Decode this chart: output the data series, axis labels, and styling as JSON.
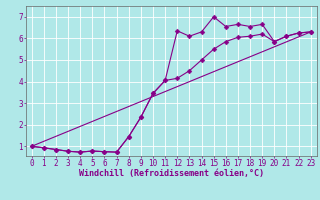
{
  "xlabel": "Windchill (Refroidissement éolien,°C)",
  "bg_color": "#b0e8e8",
  "line_color": "#880088",
  "grid_color": "#cccccc",
  "spine_color": "#666666",
  "xlim": [
    -0.5,
    23.5
  ],
  "ylim": [
    0.55,
    7.5
  ],
  "xticks": [
    0,
    1,
    2,
    3,
    4,
    5,
    6,
    7,
    8,
    9,
    10,
    11,
    12,
    13,
    14,
    15,
    16,
    17,
    18,
    19,
    20,
    21,
    22,
    23
  ],
  "yticks": [
    1,
    2,
    3,
    4,
    5,
    6,
    7
  ],
  "line1_x": [
    0,
    1,
    2,
    3,
    4,
    5,
    6,
    7,
    8,
    9,
    10,
    11,
    12,
    13,
    14,
    15,
    16,
    17,
    18,
    19,
    20,
    21,
    22,
    23
  ],
  "line1_y": [
    1.0,
    0.93,
    0.85,
    0.77,
    0.73,
    0.78,
    0.75,
    0.73,
    1.45,
    2.35,
    3.45,
    4.05,
    6.35,
    6.1,
    6.3,
    7.0,
    6.55,
    6.65,
    6.55,
    6.65,
    5.85,
    6.1,
    6.25,
    6.3
  ],
  "line2_x": [
    0,
    1,
    2,
    3,
    4,
    5,
    6,
    7,
    8,
    9,
    10,
    11,
    12,
    13,
    14,
    15,
    16,
    17,
    18,
    19,
    20,
    21,
    22,
    23
  ],
  "line2_y": [
    1.0,
    0.93,
    0.85,
    0.77,
    0.73,
    0.78,
    0.75,
    0.73,
    1.45,
    2.35,
    3.45,
    4.05,
    4.15,
    4.5,
    5.0,
    5.5,
    5.85,
    6.05,
    6.1,
    6.2,
    5.85,
    6.1,
    6.25,
    6.3
  ],
  "line3_x": [
    0,
    23
  ],
  "line3_y": [
    1.0,
    6.3
  ],
  "tick_fontsize": 5.5,
  "xlabel_fontsize": 6.0
}
